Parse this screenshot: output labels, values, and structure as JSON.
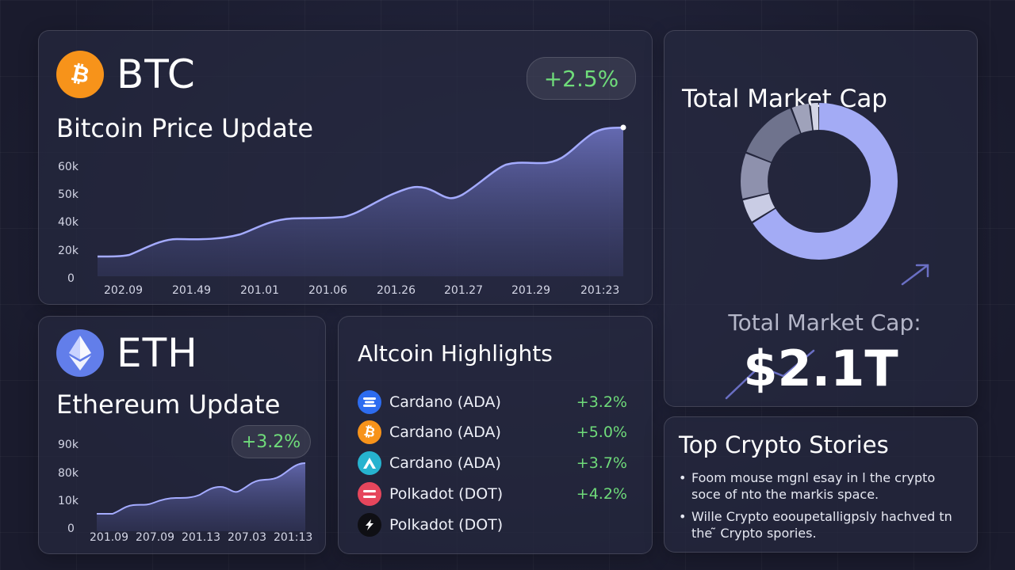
{
  "btc": {
    "symbol": "BTC",
    "title": "Bitcoin Price Update",
    "change": "+2.5%",
    "logo_icon": "bitcoin-icon",
    "logo_color": "#f7931a",
    "y_ticks": [
      "60k",
      "50k",
      "40k",
      "20k",
      "0"
    ],
    "x_ticks": [
      "202.09",
      "201.49",
      "201.01",
      "201.06",
      "201.26",
      "201.27",
      "201.29",
      "201:23"
    ]
  },
  "eth": {
    "symbol": "ETH",
    "title": "Ethereum Update",
    "change": "+3.2%",
    "logo_icon": "ethereum-icon",
    "logo_color": "#627eea",
    "y_ticks": [
      "90k",
      "80k",
      "10k",
      "0"
    ],
    "x_ticks": [
      "201.09",
      "207.09",
      "201.13",
      "207.03",
      "201:13"
    ]
  },
  "market_cap": {
    "title": "Total Market Cap",
    "label": "Total Market Cap:",
    "value": "$2.1T"
  },
  "altcoins": {
    "title": "Altcoin Highlights",
    "items": [
      {
        "name": "Cardano (ADA)",
        "change": "+3.2%",
        "icon": "cardano-icon",
        "color": "#2d6cf0"
      },
      {
        "name": "Cardano (ADA)",
        "change": "+5.0%",
        "icon": "bitcoin-icon",
        "color": "#f7931a"
      },
      {
        "name": "Cardano (ADA)",
        "change": "+3.7%",
        "icon": "arrow-coin-icon",
        "color": "#26b3cf"
      },
      {
        "name": "Polkadot (DOT)",
        "change": "+4.2%",
        "icon": "polkadot-icon",
        "color": "#e6465c"
      },
      {
        "name": "Polkadot (DOT)",
        "change": "",
        "icon": "bolt-coin-icon",
        "color": "#0f0f14"
      }
    ]
  },
  "stories": {
    "title": "Top Crypto Stories",
    "items": [
      "Foom mouse mgnl esay in l the crypto soce of nto the markis space.",
      "Wille Crypto eooupetalligpsly hachved tn the ̃ Crypto spories."
    ]
  },
  "colors": {
    "accent": "#8f98f0",
    "positive": "#6fdc7a",
    "card_bg": "#26283e",
    "page_bg": "#1d1f33"
  }
}
